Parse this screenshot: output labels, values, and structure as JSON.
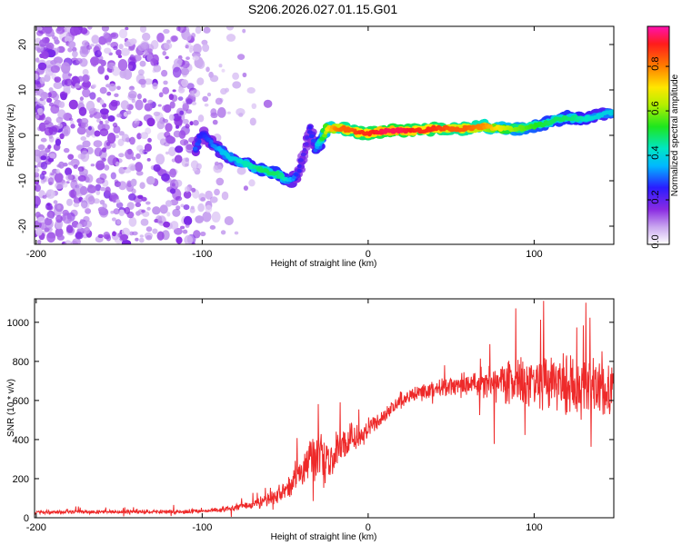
{
  "title": "S206.2026.027.01.15.G01",
  "chart_data": [
    {
      "type": "heatmap",
      "xlabel": "Height of straight line (km)",
      "ylabel": "Frequency (Hz)",
      "xlim": [
        -201,
        148
      ],
      "ylim": [
        -24,
        24
      ],
      "xticks": [
        -200,
        -100,
        0,
        100
      ],
      "xtick_labels": [
        "-200",
        "-100",
        "0",
        "100"
      ],
      "yticks": [
        -20,
        -10,
        0,
        10,
        20
      ],
      "ytick_labels": [
        "-20",
        "-10",
        "0",
        "10",
        "20"
      ],
      "trace": {
        "x": [
          -104,
          -100,
          -95,
          -90,
          -85,
          -80,
          -75,
          -70,
          -65,
          -60,
          -55,
          -50,
          -46,
          -42,
          -38,
          -35,
          -32,
          -28,
          -25,
          -20,
          -15,
          -10,
          -5,
          0,
          10,
          20,
          30,
          40,
          50,
          60,
          70,
          80,
          90,
          100,
          110,
          120,
          130,
          140,
          148
        ],
        "freq": [
          -3,
          0.5,
          -1.5,
          -3,
          -4.5,
          -5.5,
          -6,
          -7,
          -7.5,
          -8,
          -8.5,
          -9.5,
          -10,
          -8,
          -3,
          2,
          -3,
          -1,
          1.5,
          1.5,
          1.5,
          1,
          0.5,
          0.5,
          1,
          1,
          1,
          1.5,
          1.5,
          1.5,
          2,
          1.5,
          1.5,
          2,
          3,
          4,
          3.5,
          4.5,
          5
        ],
        "amplitude": [
          0.3,
          0.25,
          0.3,
          0.35,
          0.4,
          0.4,
          0.45,
          0.45,
          0.5,
          0.5,
          0.5,
          0.45,
          0.35,
          0.25,
          0.2,
          0.25,
          0.3,
          0.5,
          0.7,
          0.8,
          0.85,
          0.85,
          0.9,
          0.9,
          0.95,
          0.95,
          0.9,
          0.9,
          0.85,
          0.85,
          0.8,
          0.7,
          0.6,
          0.55,
          0.5,
          0.5,
          0.45,
          0.4,
          0.4
        ]
      },
      "colorbar": {
        "label": "Normalized spectral amplitude",
        "range": [
          0,
          0.98
        ],
        "ticks": [
          0.0,
          0.2,
          0.4,
          0.6,
          0.8
        ],
        "tick_labels": [
          "0.0",
          "0.2",
          "0.4",
          "0.6",
          "0.8"
        ]
      }
    },
    {
      "type": "line",
      "xlabel": "Height of straight line (km)",
      "ylabel": "SNR (10 * v/v)",
      "xlim": [
        -201,
        148
      ],
      "ylim": [
        0,
        1120
      ],
      "xticks": [
        -200,
        -100,
        0,
        100
      ],
      "xtick_labels": [
        "-200",
        "-100",
        "0",
        "100"
      ],
      "yticks": [
        0,
        200,
        400,
        600,
        800,
        1000
      ],
      "ytick_labels": [
        "0",
        "200",
        "400",
        "600",
        "800",
        "1000"
      ],
      "series": [
        {
          "name": "SNR",
          "color": "#ee2a2a",
          "envelope_x": [
            -201,
            -150,
            -100,
            -85,
            -75,
            -65,
            -55,
            -45,
            -40,
            -35,
            -30,
            -25,
            -20,
            -15,
            -10,
            -5,
            0,
            5,
            10,
            15,
            20,
            30,
            40,
            50,
            60,
            70,
            80,
            90,
            100,
            110,
            120,
            130,
            140,
            148
          ],
          "mean": [
            28,
            30,
            32,
            45,
            60,
            75,
            110,
            170,
            240,
            300,
            320,
            250,
            330,
            380,
            400,
            420,
            460,
            490,
            530,
            570,
            600,
            640,
            660,
            670,
            680,
            680,
            690,
            700,
            690,
            690,
            680,
            680,
            670,
            670
          ],
          "spread": [
            12,
            12,
            14,
            16,
            20,
            30,
            50,
            80,
            110,
            140,
            160,
            150,
            120,
            100,
            90,
            80,
            70,
            60,
            55,
            50,
            50,
            50,
            60,
            60,
            80,
            100,
            120,
            140,
            160,
            180,
            200,
            200,
            180,
            170
          ]
        }
      ]
    }
  ]
}
